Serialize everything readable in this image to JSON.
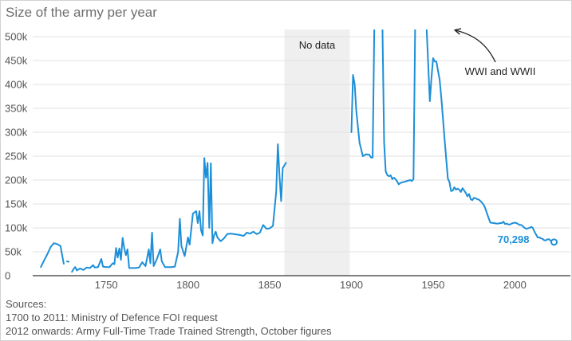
{
  "title": "Size of the army per year",
  "chart_data": {
    "type": "line",
    "title": "Size of the army per year",
    "xlim": [
      1705,
      2034
    ],
    "ylim": [
      0,
      500000
    ],
    "x_ticks": [
      1750,
      1800,
      1850,
      1900,
      1950,
      2000
    ],
    "y_ticks": [
      {
        "value": 0,
        "label": "0"
      },
      {
        "value": 50000,
        "label": "50k"
      },
      {
        "value": 100000,
        "label": "100k"
      },
      {
        "value": 150000,
        "label": "150k"
      },
      {
        "value": 200000,
        "label": "200k"
      },
      {
        "value": 250000,
        "label": "250k"
      },
      {
        "value": 300000,
        "label": "300k"
      },
      {
        "value": 350000,
        "label": "350k"
      },
      {
        "value": 400000,
        "label": "400k"
      },
      {
        "value": 450000,
        "label": "450k"
      },
      {
        "value": 500000,
        "label": "500k"
      }
    ],
    "grid": "horizontal",
    "line_color": "#1c8fd8",
    "no_data_range": [
      1859,
      1899
    ],
    "no_data_label": "No data",
    "annotation": "WWI and WWII",
    "end_value_label": "70,298",
    "end_point": [
      2024,
      70298
    ],
    "series": [
      {
        "values": [
          [
            1710,
            18000
          ],
          [
            1712,
            32000
          ],
          [
            1714,
            45000
          ],
          [
            1716,
            60000
          ],
          [
            1718,
            68000
          ],
          [
            1720,
            66000
          ],
          [
            1722,
            62000
          ],
          [
            1724,
            25000
          ]
        ]
      },
      {
        "values": [
          [
            1726,
            30000
          ],
          [
            1727,
            29000
          ]
        ]
      },
      {
        "values": [
          [
            1729,
            8000
          ],
          [
            1730,
            14000
          ],
          [
            1731,
            18000
          ],
          [
            1732,
            11000
          ],
          [
            1734,
            15000
          ],
          [
            1736,
            12000
          ],
          [
            1738,
            17000
          ],
          [
            1740,
            16000
          ],
          [
            1742,
            22000
          ],
          [
            1743,
            17000
          ],
          [
            1745,
            18000
          ],
          [
            1747,
            35000
          ],
          [
            1748,
            19000
          ],
          [
            1750,
            18000
          ],
          [
            1752,
            18000
          ],
          [
            1754,
            26000
          ],
          [
            1755,
            24000
          ],
          [
            1756,
            58000
          ],
          [
            1757,
            38000
          ],
          [
            1758,
            57000
          ],
          [
            1759,
            33000
          ],
          [
            1760,
            79000
          ],
          [
            1761,
            58000
          ],
          [
            1762,
            43000
          ],
          [
            1763,
            55000
          ],
          [
            1764,
            16000
          ],
          [
            1768,
            16000
          ],
          [
            1770,
            17000
          ],
          [
            1772,
            28000
          ],
          [
            1774,
            20000
          ],
          [
            1776,
            55000
          ],
          [
            1777,
            26000
          ],
          [
            1778,
            90000
          ],
          [
            1779,
            20000
          ],
          [
            1781,
            35000
          ],
          [
            1783,
            55000
          ],
          [
            1784,
            30000
          ],
          [
            1786,
            18000
          ],
          [
            1790,
            18000
          ],
          [
            1792,
            19000
          ],
          [
            1794,
            50000
          ],
          [
            1795,
            119000
          ],
          [
            1796,
            62000
          ],
          [
            1798,
            41000
          ],
          [
            1800,
            80000
          ],
          [
            1801,
            65000
          ],
          [
            1803,
            130000
          ],
          [
            1805,
            135000
          ],
          [
            1806,
            110000
          ],
          [
            1807,
            135000
          ],
          [
            1808,
            95000
          ],
          [
            1809,
            84000
          ],
          [
            1810,
            246000
          ],
          [
            1811,
            205000
          ],
          [
            1812,
            236000
          ],
          [
            1813,
            100000
          ],
          [
            1814,
            235000
          ],
          [
            1815,
            68000
          ],
          [
            1816,
            85000
          ],
          [
            1817,
            92000
          ],
          [
            1818,
            80000
          ],
          [
            1820,
            72000
          ],
          [
            1822,
            78000
          ],
          [
            1824,
            87000
          ],
          [
            1826,
            88000
          ],
          [
            1828,
            87000
          ],
          [
            1830,
            86000
          ],
          [
            1832,
            85000
          ],
          [
            1834,
            83000
          ],
          [
            1836,
            90000
          ],
          [
            1838,
            88000
          ],
          [
            1840,
            92000
          ],
          [
            1842,
            87000
          ],
          [
            1844,
            90000
          ],
          [
            1846,
            106000
          ],
          [
            1848,
            98000
          ],
          [
            1850,
            99000
          ],
          [
            1852,
            104000
          ],
          [
            1854,
            175000
          ],
          [
            1855,
            275000
          ],
          [
            1856,
            210000
          ],
          [
            1857,
            156000
          ],
          [
            1858,
            225000
          ],
          [
            1860,
            236000
          ]
        ]
      },
      {
        "values": [
          [
            1900,
            300000
          ],
          [
            1901,
            420000
          ],
          [
            1902,
            400000
          ],
          [
            1903,
            345000
          ],
          [
            1905,
            278000
          ],
          [
            1906,
            264000
          ],
          [
            1907,
            250000
          ],
          [
            1909,
            254000
          ],
          [
            1911,
            253000
          ],
          [
            1912,
            247000
          ],
          [
            1913,
            247000
          ],
          [
            1914,
            520000
          ],
          [
            1915,
            520000
          ],
          [
            1916,
            520000
          ],
          [
            1917,
            520000
          ],
          [
            1918,
            520000
          ],
          [
            1919,
            520000
          ],
          [
            1920,
            278000
          ],
          [
            1921,
            218000
          ],
          [
            1922,
            210000
          ],
          [
            1923,
            208000
          ],
          [
            1924,
            210000
          ],
          [
            1925,
            202000
          ],
          [
            1926,
            205000
          ],
          [
            1927,
            202000
          ],
          [
            1928,
            197000
          ],
          [
            1929,
            191000
          ],
          [
            1930,
            194000
          ],
          [
            1932,
            196000
          ],
          [
            1934,
            198000
          ],
          [
            1936,
            200000
          ],
          [
            1937,
            198000
          ],
          [
            1938,
            202000
          ],
          [
            1939,
            520000
          ],
          [
            1940,
            520000
          ],
          [
            1944,
            520000
          ],
          [
            1945,
            520000
          ],
          [
            1946,
            520000
          ],
          [
            1947,
            440000
          ],
          [
            1948,
            365000
          ],
          [
            1949,
            415000
          ],
          [
            1950,
            455000
          ],
          [
            1951,
            448000
          ],
          [
            1952,
            448000
          ],
          [
            1953,
            428000
          ],
          [
            1954,
            410000
          ],
          [
            1955,
            372000
          ],
          [
            1956,
            330000
          ],
          [
            1957,
            285000
          ],
          [
            1958,
            245000
          ],
          [
            1959,
            203000
          ],
          [
            1960,
            196000
          ],
          [
            1961,
            177000
          ],
          [
            1962,
            178000
          ],
          [
            1963,
            185000
          ],
          [
            1964,
            180000
          ],
          [
            1965,
            182000
          ],
          [
            1966,
            180000
          ],
          [
            1967,
            175000
          ],
          [
            1968,
            183000
          ],
          [
            1969,
            178000
          ],
          [
            1970,
            173000
          ],
          [
            1971,
            166000
          ],
          [
            1972,
            171000
          ],
          [
            1973,
            160000
          ],
          [
            1974,
            158000
          ],
          [
            1975,
            163000
          ],
          [
            1976,
            162000
          ],
          [
            1977,
            160000
          ],
          [
            1978,
            159000
          ],
          [
            1979,
            156000
          ],
          [
            1980,
            152000
          ],
          [
            1981,
            148000
          ],
          [
            1982,
            140000
          ],
          [
            1983,
            130000
          ],
          [
            1984,
            120000
          ],
          [
            1985,
            111000
          ],
          [
            1987,
            110000
          ],
          [
            1989,
            109000
          ],
          [
            1990,
            109000
          ],
          [
            1991,
            110000
          ],
          [
            1992,
            110000
          ],
          [
            1993,
            113000
          ],
          [
            1994,
            108000
          ],
          [
            1995,
            109000
          ],
          [
            1996,
            107000
          ],
          [
            1997,
            107000
          ],
          [
            1998,
            109000
          ],
          [
            1999,
            110000
          ],
          [
            2000,
            111000
          ],
          [
            2001,
            110000
          ],
          [
            2002,
            108000
          ],
          [
            2003,
            106000
          ],
          [
            2004,
            106000
          ],
          [
            2005,
            103000
          ],
          [
            2006,
            100000
          ],
          [
            2007,
            98000
          ],
          [
            2008,
            99000
          ],
          [
            2009,
            100000
          ],
          [
            2010,
            102000
          ],
          [
            2011,
            100000
          ],
          [
            2012,
            92000
          ],
          [
            2013,
            86000
          ],
          [
            2014,
            80000
          ],
          [
            2015,
            80000
          ],
          [
            2016,
            78000
          ],
          [
            2017,
            77000
          ],
          [
            2018,
            74000
          ],
          [
            2019,
            74000
          ],
          [
            2020,
            76000
          ],
          [
            2021,
            76000
          ],
          [
            2022,
            73000
          ],
          [
            2023,
            72000
          ],
          [
            2024,
            70298
          ]
        ]
      }
    ]
  },
  "sources": {
    "heading": "Sources:",
    "line1": "1700 to 2011: Ministry of Defence FOI request",
    "line2": "2012 onwards: Army Full-Time Trade Trained Strength, October figures"
  }
}
